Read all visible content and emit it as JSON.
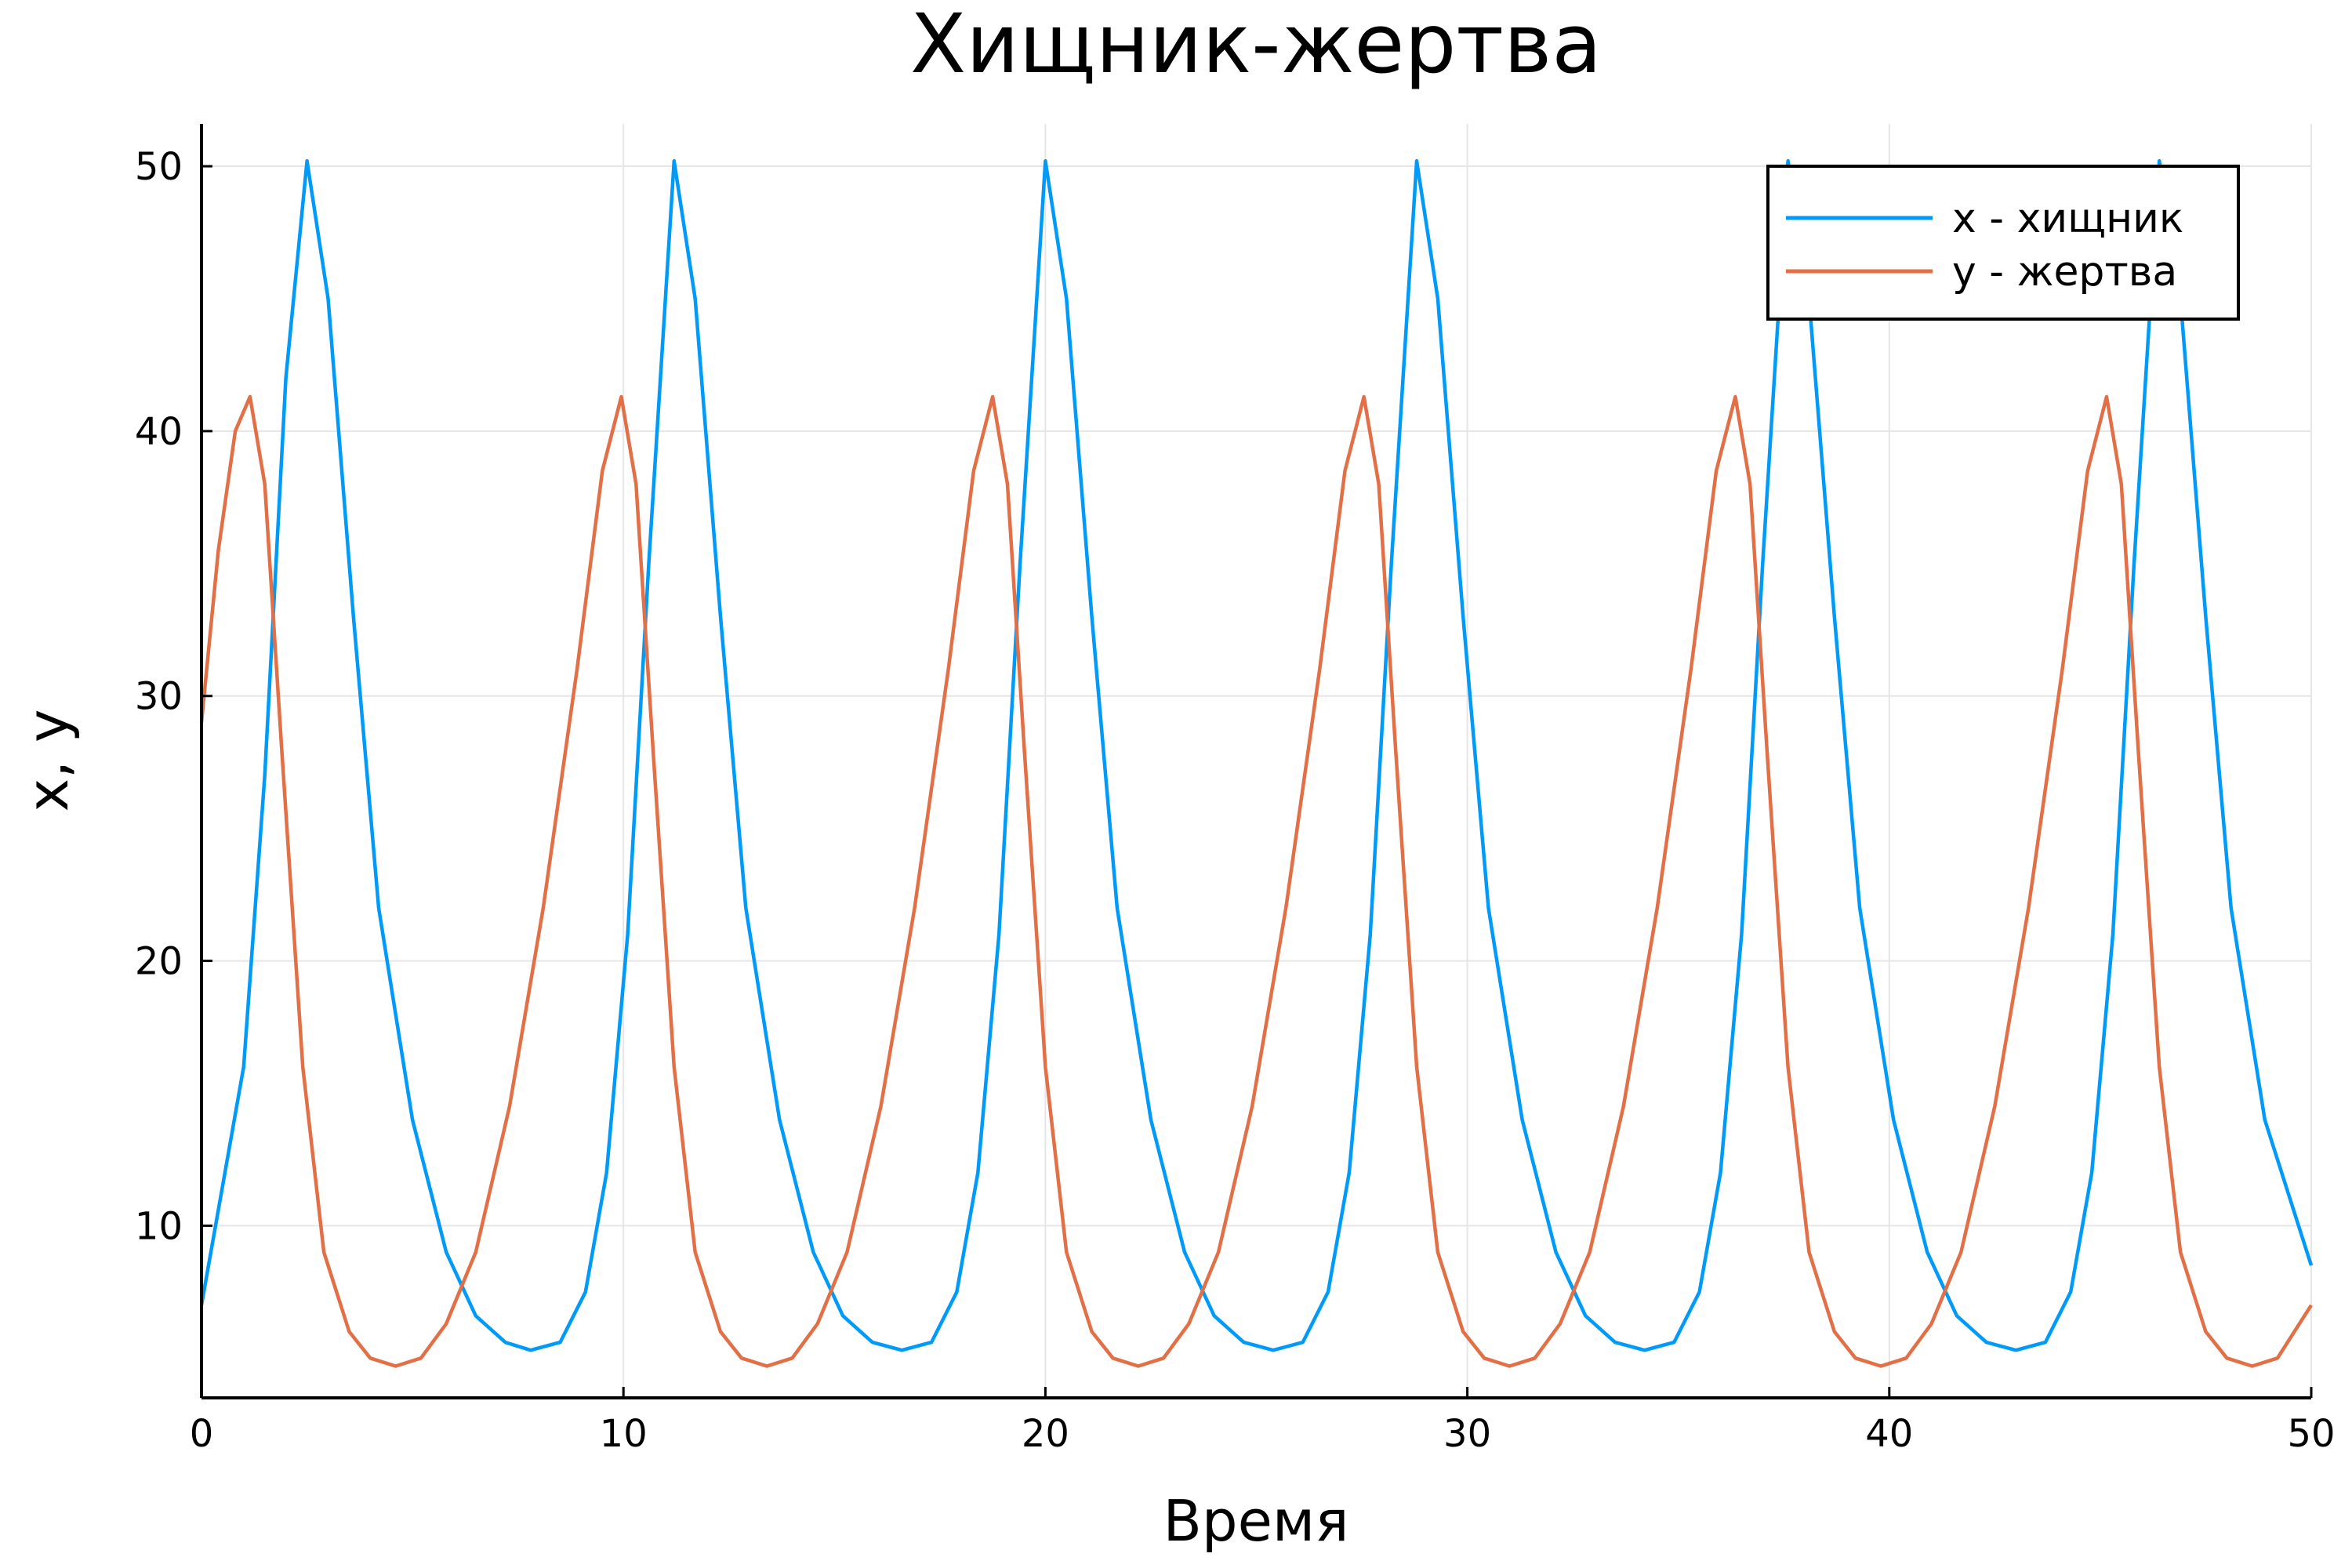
{
  "chart_data": {
    "type": "line",
    "title": "Хищник-жертва",
    "xlabel": "Время",
    "ylabel": "x, y",
    "xlim": [
      0,
      50
    ],
    "ylim": [
      3.5,
      51.6
    ],
    "xticks": [
      0,
      10,
      20,
      30,
      40,
      50
    ],
    "yticks": [
      10,
      20,
      30,
      40,
      50
    ],
    "grid": true,
    "legend_position": "top-right",
    "series": [
      {
        "name": "x - хищник",
        "color": "#009af9",
        "points": [
          [
            0,
            7.0
          ],
          [
            1.0,
            16.0
          ],
          [
            1.5,
            27.0
          ],
          [
            2.0,
            42.0
          ],
          [
            2.5,
            50.2
          ],
          [
            3.0,
            45.0
          ],
          [
            3.6,
            33.0
          ],
          [
            4.2,
            22.0
          ],
          [
            5.0,
            14.0
          ],
          [
            5.8,
            9.0
          ],
          [
            6.5,
            6.6
          ],
          [
            7.2,
            5.6
          ],
          [
            7.8,
            5.3
          ],
          [
            8.5,
            5.6
          ],
          [
            9.1,
            7.5
          ],
          [
            9.6,
            12.0
          ],
          [
            10.1,
            21.0
          ],
          [
            10.6,
            35.0
          ],
          [
            11.2,
            50.2
          ],
          [
            11.7,
            45.0
          ],
          [
            12.3,
            33.0
          ],
          [
            12.9,
            22.0
          ],
          [
            13.7,
            14.0
          ],
          [
            14.5,
            9.0
          ],
          [
            15.2,
            6.6
          ],
          [
            15.9,
            5.6
          ],
          [
            16.6,
            5.3
          ],
          [
            17.3,
            5.6
          ],
          [
            17.9,
            7.5
          ],
          [
            18.4,
            12.0
          ],
          [
            18.9,
            21.0
          ],
          [
            19.4,
            35.0
          ],
          [
            20.0,
            50.2
          ],
          [
            20.5,
            45.0
          ],
          [
            21.1,
            33.0
          ],
          [
            21.7,
            22.0
          ],
          [
            22.5,
            14.0
          ],
          [
            23.3,
            9.0
          ],
          [
            24.0,
            6.6
          ],
          [
            24.7,
            5.6
          ],
          [
            25.4,
            5.3
          ],
          [
            26.1,
            5.6
          ],
          [
            26.7,
            7.5
          ],
          [
            27.2,
            12.0
          ],
          [
            27.7,
            21.0
          ],
          [
            28.2,
            35.0
          ],
          [
            28.8,
            50.2
          ],
          [
            29.3,
            45.0
          ],
          [
            29.9,
            33.0
          ],
          [
            30.5,
            22.0
          ],
          [
            31.3,
            14.0
          ],
          [
            32.1,
            9.0
          ],
          [
            32.8,
            6.6
          ],
          [
            33.5,
            5.6
          ],
          [
            34.2,
            5.3
          ],
          [
            34.9,
            5.6
          ],
          [
            35.5,
            7.5
          ],
          [
            36.0,
            12.0
          ],
          [
            36.5,
            21.0
          ],
          [
            37.0,
            35.0
          ],
          [
            37.6,
            50.2
          ],
          [
            38.1,
            45.0
          ],
          [
            38.7,
            33.0
          ],
          [
            39.3,
            22.0
          ],
          [
            40.1,
            14.0
          ],
          [
            40.9,
            9.0
          ],
          [
            41.6,
            6.6
          ],
          [
            42.3,
            5.6
          ],
          [
            43.0,
            5.3
          ],
          [
            43.7,
            5.6
          ],
          [
            44.3,
            7.5
          ],
          [
            44.8,
            12.0
          ],
          [
            45.3,
            21.0
          ],
          [
            45.8,
            35.0
          ],
          [
            46.4,
            50.2
          ],
          [
            46.9,
            45.0
          ],
          [
            47.5,
            33.0
          ],
          [
            48.1,
            22.0
          ],
          [
            48.9,
            14.0
          ],
          [
            50.0,
            8.5
          ]
        ]
      },
      {
        "name": "y - жертва",
        "color": "#e26f46",
        "points": [
          [
            0,
            29.0
          ],
          [
            0.4,
            35.5
          ],
          [
            0.8,
            40.0
          ],
          [
            1.15,
            41.3
          ],
          [
            1.5,
            38.0
          ],
          [
            1.9,
            28.0
          ],
          [
            2.4,
            16.0
          ],
          [
            2.9,
            9.0
          ],
          [
            3.5,
            6.0
          ],
          [
            4.0,
            5.0
          ],
          [
            4.6,
            4.7
          ],
          [
            5.2,
            5.0
          ],
          [
            5.8,
            6.3
          ],
          [
            6.5,
            9.0
          ],
          [
            7.3,
            14.5
          ],
          [
            8.1,
            22.0
          ],
          [
            8.9,
            31.0
          ],
          [
            9.5,
            38.5
          ],
          [
            9.95,
            41.3
          ],
          [
            10.3,
            38.0
          ],
          [
            10.7,
            28.0
          ],
          [
            11.2,
            16.0
          ],
          [
            11.7,
            9.0
          ],
          [
            12.3,
            6.0
          ],
          [
            12.8,
            5.0
          ],
          [
            13.4,
            4.7
          ],
          [
            14.0,
            5.0
          ],
          [
            14.6,
            6.3
          ],
          [
            15.3,
            9.0
          ],
          [
            16.1,
            14.5
          ],
          [
            16.9,
            22.0
          ],
          [
            17.7,
            31.0
          ],
          [
            18.3,
            38.5
          ],
          [
            18.75,
            41.3
          ],
          [
            19.1,
            38.0
          ],
          [
            19.5,
            28.0
          ],
          [
            20.0,
            16.0
          ],
          [
            20.5,
            9.0
          ],
          [
            21.1,
            6.0
          ],
          [
            21.6,
            5.0
          ],
          [
            22.2,
            4.7
          ],
          [
            22.8,
            5.0
          ],
          [
            23.4,
            6.3
          ],
          [
            24.1,
            9.0
          ],
          [
            24.9,
            14.5
          ],
          [
            25.7,
            22.0
          ],
          [
            26.5,
            31.0
          ],
          [
            27.1,
            38.5
          ],
          [
            27.55,
            41.3
          ],
          [
            27.9,
            38.0
          ],
          [
            28.3,
            28.0
          ],
          [
            28.8,
            16.0
          ],
          [
            29.3,
            9.0
          ],
          [
            29.9,
            6.0
          ],
          [
            30.4,
            5.0
          ],
          [
            31.0,
            4.7
          ],
          [
            31.6,
            5.0
          ],
          [
            32.2,
            6.3
          ],
          [
            32.9,
            9.0
          ],
          [
            33.7,
            14.5
          ],
          [
            34.5,
            22.0
          ],
          [
            35.3,
            31.0
          ],
          [
            35.9,
            38.5
          ],
          [
            36.35,
            41.3
          ],
          [
            36.7,
            38.0
          ],
          [
            37.1,
            28.0
          ],
          [
            37.6,
            16.0
          ],
          [
            38.1,
            9.0
          ],
          [
            38.7,
            6.0
          ],
          [
            39.2,
            5.0
          ],
          [
            39.8,
            4.7
          ],
          [
            40.4,
            5.0
          ],
          [
            41.0,
            6.3
          ],
          [
            41.7,
            9.0
          ],
          [
            42.5,
            14.5
          ],
          [
            43.3,
            22.0
          ],
          [
            44.1,
            31.0
          ],
          [
            44.7,
            38.5
          ],
          [
            45.15,
            41.3
          ],
          [
            45.5,
            38.0
          ],
          [
            45.9,
            28.0
          ],
          [
            46.4,
            16.0
          ],
          [
            46.9,
            9.0
          ],
          [
            47.5,
            6.0
          ],
          [
            48.0,
            5.0
          ],
          [
            48.6,
            4.7
          ],
          [
            49.2,
            5.0
          ],
          [
            50.0,
            7.0
          ]
        ]
      }
    ]
  }
}
